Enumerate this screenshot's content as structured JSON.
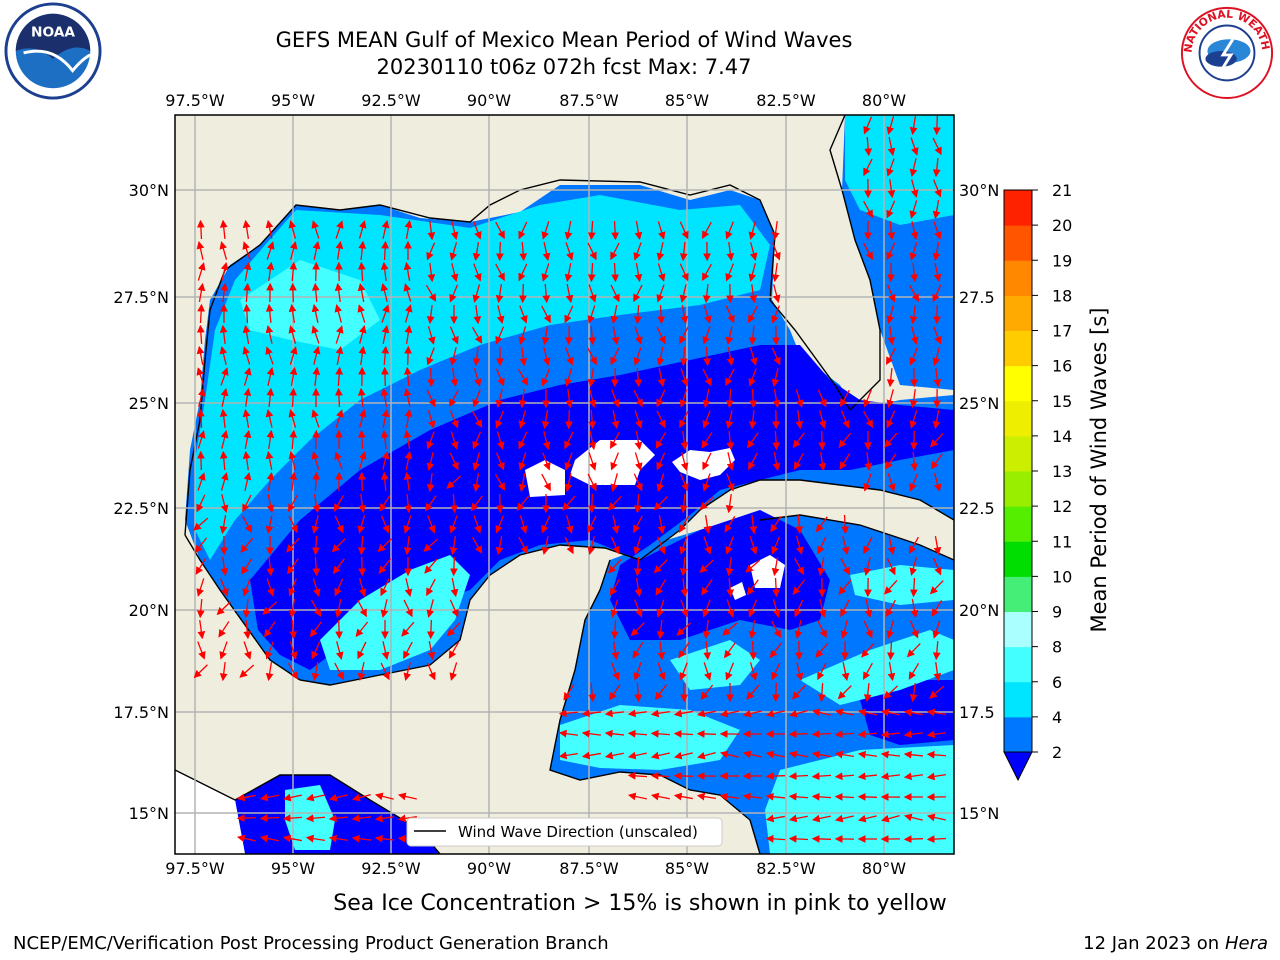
{
  "title": {
    "line1": "GEFS MEAN Gulf of Mexico Mean Period of Wind Waves",
    "line2": "20230110 t06z 072h fcst   Max: 7.47"
  },
  "logos": {
    "left": {
      "icon": "noaa-logo",
      "text": "NOAA"
    },
    "right": {
      "icon": "national-weather-service-logo",
      "text": "NATIONAL WEATHER SERVICE"
    }
  },
  "map": {
    "lon_labels": [
      "97.5°W",
      "95°W",
      "92.5°W",
      "90°W",
      "87.5°W",
      "85°W",
      "82.5°W",
      "80°W"
    ],
    "lat_labels": [
      "30°N",
      "27.5°N",
      "25°N",
      "22.5°N",
      "20°N",
      "17.5°N",
      "15°N"
    ],
    "lat_labels_right": [
      "30°N",
      "27.5",
      "25°N",
      "22.5",
      "20°N",
      "17.5",
      "15°N"
    ],
    "legend_text": "Wind Wave Direction (unscaled)",
    "colors": {
      "land": "#efedde",
      "coast": "#000000",
      "grid": "#b3b3b3",
      "arrow": "#ff0000"
    }
  },
  "colorbar": {
    "label": "Mean Period of Wind Waves [s]",
    "ticks": [
      "2",
      "4",
      "6",
      "8",
      "9",
      "10",
      "11",
      "12",
      "13",
      "14",
      "15",
      "16",
      "17",
      "18",
      "19",
      "20",
      "21"
    ],
    "colors": [
      "#0077ff",
      "#00e5ff",
      "#44ffff",
      "#aaffff",
      "#44ee77",
      "#00dd00",
      "#55ee00",
      "#99ee00",
      "#ccee00",
      "#eeee00",
      "#ffff00",
      "#ffcc00",
      "#ffaa00",
      "#ff8800",
      "#ff5500",
      "#ff2200"
    ],
    "extend_color": "#0000ff"
  },
  "footer": {
    "sea_ice_note": "Sea Ice Concentration > 15% is shown in pink to yellow",
    "credit": "NCEP/EMC/Verification Post Processing Product Generation Branch",
    "date": "12 Jan 2023 on",
    "host": "Hera"
  }
}
